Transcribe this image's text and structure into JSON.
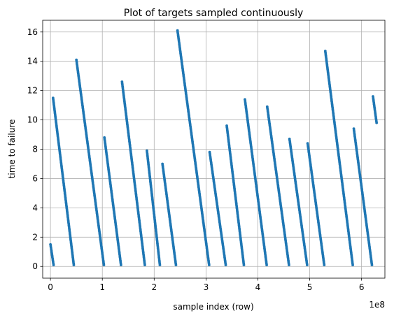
{
  "chart_data": {
    "type": "scatter",
    "title": "Plot of targets sampled continuously",
    "xlabel": "sample index (row)",
    "ylabel": "time to failure",
    "x_offset_label": "1e8",
    "xlim": [
      -0.15,
      6.45
    ],
    "ylim": [
      -0.8,
      16.8
    ],
    "x_unit_multiplier": 100000000,
    "x_ticks": [
      0,
      1,
      2,
      3,
      4,
      5,
      6
    ],
    "x_tick_labels": [
      "0",
      "1",
      "2",
      "3",
      "4",
      "5",
      "6"
    ],
    "y_ticks": [
      0,
      2,
      4,
      6,
      8,
      10,
      12,
      14,
      16
    ],
    "y_tick_labels": [
      "0",
      "2",
      "4",
      "6",
      "8",
      "10",
      "12",
      "14",
      "16"
    ],
    "grid": true,
    "marker_color": "#1f77b4",
    "series": [
      {
        "segments": [
          {
            "x": [
              0.0,
              0.06
            ],
            "y": [
              1.5,
              0.1
            ]
          },
          {
            "x": [
              0.05,
              0.45
            ],
            "y": [
              11.5,
              0.1
            ]
          },
          {
            "x": [
              0.5,
              1.03
            ],
            "y": [
              14.1,
              0.1
            ]
          },
          {
            "x": [
              1.04,
              1.36
            ],
            "y": [
              8.8,
              0.1
            ]
          },
          {
            "x": [
              1.38,
              1.82
            ],
            "y": [
              12.6,
              0.1
            ]
          },
          {
            "x": [
              1.86,
              2.11
            ],
            "y": [
              7.9,
              0.1
            ]
          },
          {
            "x": [
              2.16,
              2.42
            ],
            "y": [
              7.0,
              0.1
            ]
          },
          {
            "x": [
              2.45,
              3.06
            ],
            "y": [
              16.1,
              0.1
            ]
          },
          {
            "x": [
              3.07,
              3.38
            ],
            "y": [
              7.8,
              0.1
            ]
          },
          {
            "x": [
              3.4,
              3.73
            ],
            "y": [
              9.6,
              0.1
            ]
          },
          {
            "x": [
              3.75,
              4.17
            ],
            "y": [
              11.4,
              0.1
            ]
          },
          {
            "x": [
              4.18,
              4.6
            ],
            "y": [
              10.9,
              0.1
            ]
          },
          {
            "x": [
              4.61,
              4.95
            ],
            "y": [
              8.7,
              0.1
            ]
          },
          {
            "x": [
              4.96,
              5.28
            ],
            "y": [
              8.4,
              0.1
            ]
          },
          {
            "x": [
              5.3,
              5.83
            ],
            "y": [
              14.7,
              0.1
            ]
          },
          {
            "x": [
              5.85,
              6.2
            ],
            "y": [
              9.4,
              0.1
            ]
          },
          {
            "x": [
              6.22,
              6.29
            ],
            "y": [
              11.6,
              9.8
            ]
          }
        ]
      }
    ]
  }
}
